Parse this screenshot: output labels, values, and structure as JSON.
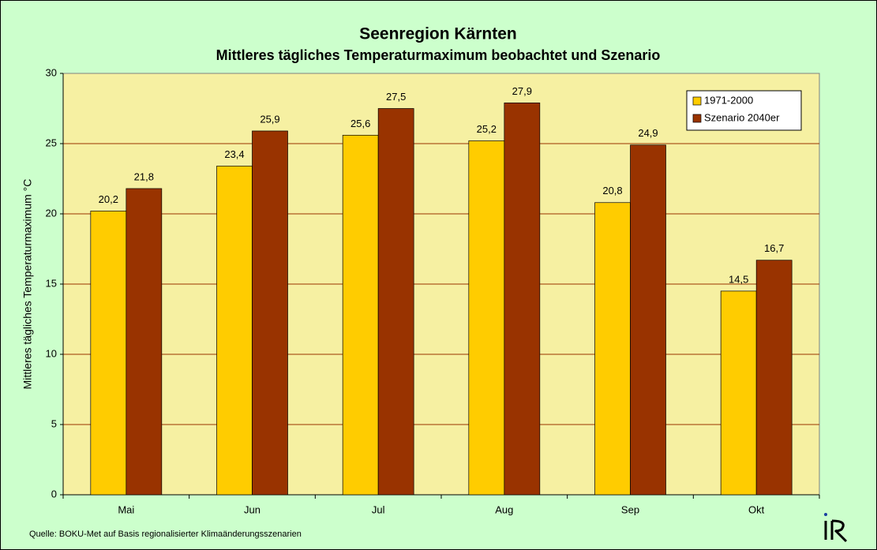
{
  "chart_data": {
    "type": "bar",
    "title": "Seenregion Kärnten",
    "subtitle": "Mittleres tägliches Temperaturmaximum beobachtet und Szenario",
    "y_label": "Mittleres tägliches Temperaturmaximum °C",
    "source": "Quelle: BOKU-Met auf Basis regionalisierter Klimaänderungsszenarien",
    "categories": [
      "Mai",
      "Jun",
      "Jul",
      "Aug",
      "Sep",
      "Okt"
    ],
    "series": [
      {
        "name": "1971-2000",
        "color": "#ffcc00",
        "values": [
          20.2,
          23.4,
          25.6,
          25.2,
          20.8,
          14.5
        ],
        "value_labels": [
          "20,2",
          "23,4",
          "25,6",
          "25,2",
          "20,8",
          "14,5"
        ]
      },
      {
        "name": "Szenario 2040er",
        "color": "#993300",
        "values": [
          21.8,
          25.9,
          27.5,
          27.9,
          24.9,
          16.7
        ],
        "value_labels": [
          "21,8",
          "25,9",
          "27,5",
          "27,9",
          "24,9",
          "16,7"
        ]
      }
    ],
    "ylim": [
      0,
      30
    ],
    "yticks": [
      0,
      5,
      10,
      15,
      20,
      25,
      30
    ],
    "grid": true,
    "legend": "upper right"
  }
}
